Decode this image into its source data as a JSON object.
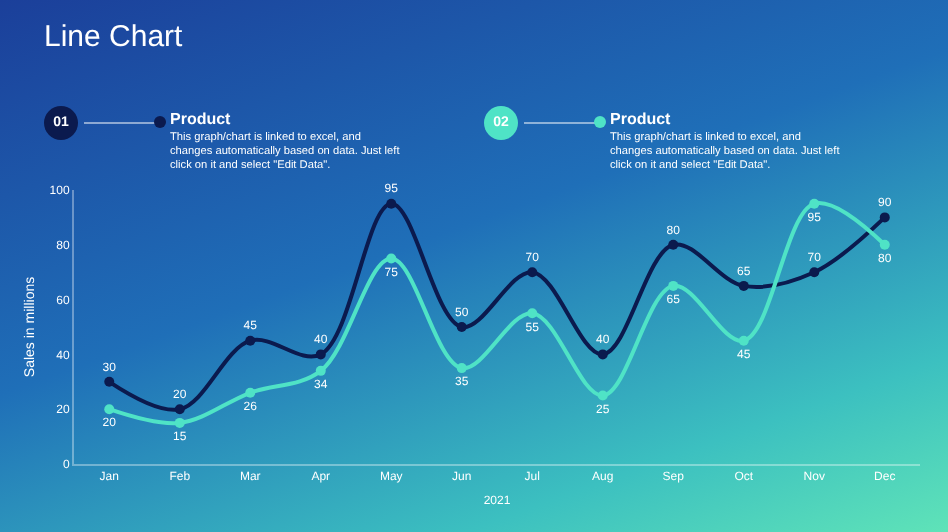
{
  "chart_data": {
    "type": "line",
    "title": "Line Chart",
    "xlabel": "2021",
    "ylabel": "Sales in millions",
    "categories": [
      "Jan",
      "Feb",
      "Mar",
      "Apr",
      "May",
      "Jun",
      "Jul",
      "Aug",
      "Sep",
      "Oct",
      "Nov",
      "Dec"
    ],
    "series": [
      {
        "name": "Product",
        "color": "#0b1a4e",
        "values": [
          30,
          20,
          45,
          40,
          95,
          50,
          70,
          40,
          80,
          65,
          70,
          90
        ]
      },
      {
        "name": "Product",
        "color": "#4fe3c6",
        "values": [
          20,
          15,
          26,
          34,
          75,
          35,
          55,
          25,
          65,
          45,
          95,
          80
        ]
      }
    ],
    "annotations": [
      "01",
      "This graph/chart is linked to excel, and changes automatically based on data. Just left click on it and select \"Edit Data\".",
      "02",
      "This graph/chart is linked to excel, and changes automatically based on data. Just left click on it and select \"Edit Data\"."
    ],
    "ylim": [
      0,
      100
    ],
    "yticks": [
      0,
      20,
      40,
      60,
      80,
      100
    ],
    "grid": false,
    "legend": "top",
    "marker": "circle",
    "line_style": "solid",
    "data_labels": true
  }
}
